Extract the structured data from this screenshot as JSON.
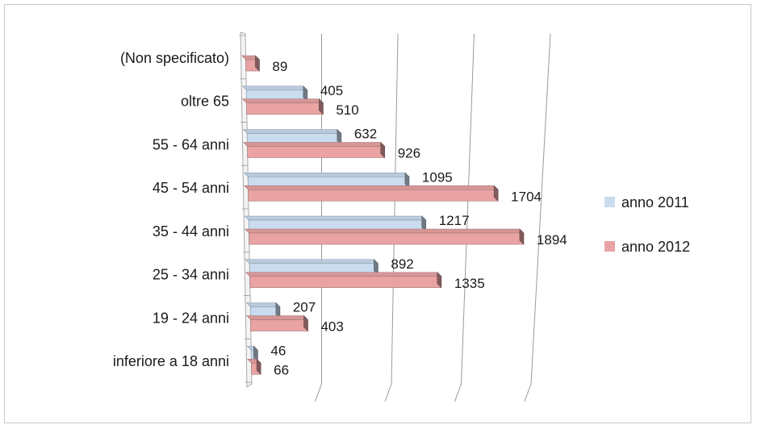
{
  "chart_data": {
    "type": "bar",
    "orientation": "horizontal",
    "style": "3d",
    "categories": [
      "(Non specificato)",
      "oltre 65",
      "55 - 64 anni",
      "45 - 54 anni",
      "35 - 44 anni",
      "25 - 34 anni",
      "19 - 24 anni",
      "inferiore a 18 anni"
    ],
    "series": [
      {
        "name": "anno 2011",
        "color": "#c9dcf0",
        "values": [
          null,
          405,
          632,
          1095,
          1217,
          892,
          207,
          46
        ],
        "labels": [
          "",
          "405",
          "632",
          "1095",
          "1217",
          "892",
          "207",
          "46"
        ]
      },
      {
        "name": "anno 2012",
        "color": "#e9a3a3",
        "values": [
          89,
          510,
          926,
          1704,
          1894,
          1335,
          403,
          66
        ],
        "labels": [
          "89",
          "510",
          "926",
          "1704",
          "1894",
          "1335",
          "403",
          "66"
        ]
      }
    ],
    "xlim": [
      0,
      2000
    ],
    "grid": true,
    "legend": "right"
  }
}
